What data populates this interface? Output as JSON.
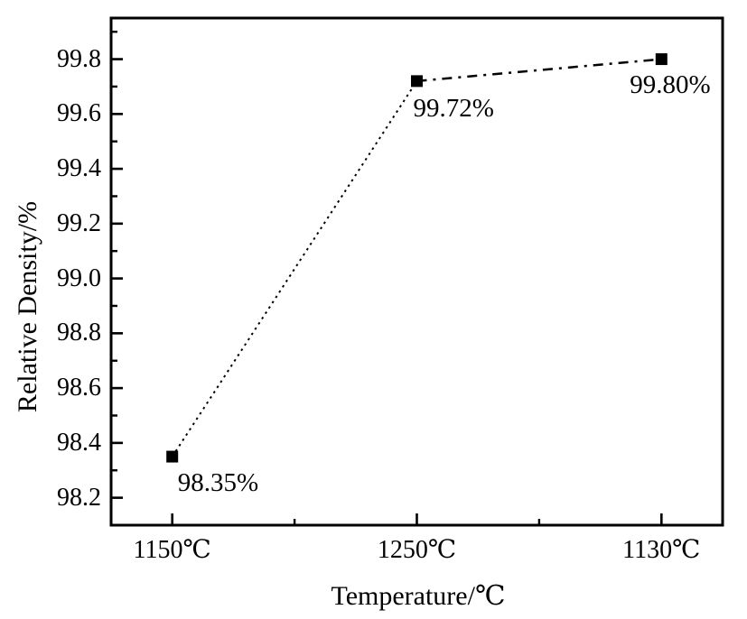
{
  "chart_data": {
    "type": "line",
    "title": "",
    "xlabel": "Temperature/℃",
    "ylabel": "Relative Density/%",
    "categories": [
      "1150℃",
      "1250℃",
      "1130℃"
    ],
    "values": [
      98.35,
      99.72,
      99.8
    ],
    "point_labels": [
      "98.35%",
      "99.72%",
      "99.80%"
    ],
    "series": [
      {
        "name": "relative-density",
        "values": [
          98.35,
          99.72,
          99.8
        ]
      }
    ],
    "y_tick_labels": [
      "99.8",
      "99.6",
      "99.4",
      "99.2",
      "99.0",
      "98.8",
      "98.6",
      "98.4",
      "98.2"
    ],
    "y_tick_values": [
      99.8,
      99.6,
      99.4,
      99.2,
      99.0,
      98.8,
      98.6,
      98.4,
      98.2
    ],
    "y_minor_tick_values": [
      99.9,
      99.7,
      99.5,
      99.3,
      99.1,
      98.9,
      98.7,
      98.5,
      98.3
    ],
    "ylim": [
      98.1,
      99.95
    ],
    "grid": false,
    "legend": "none",
    "marker": "filled-square",
    "line_styles": [
      "dotted",
      "dash-dot"
    ],
    "colors": {
      "line": "#000000",
      "marker": "#000000",
      "text": "#000000",
      "axis": "#000000",
      "background": "#ffffff"
    }
  }
}
